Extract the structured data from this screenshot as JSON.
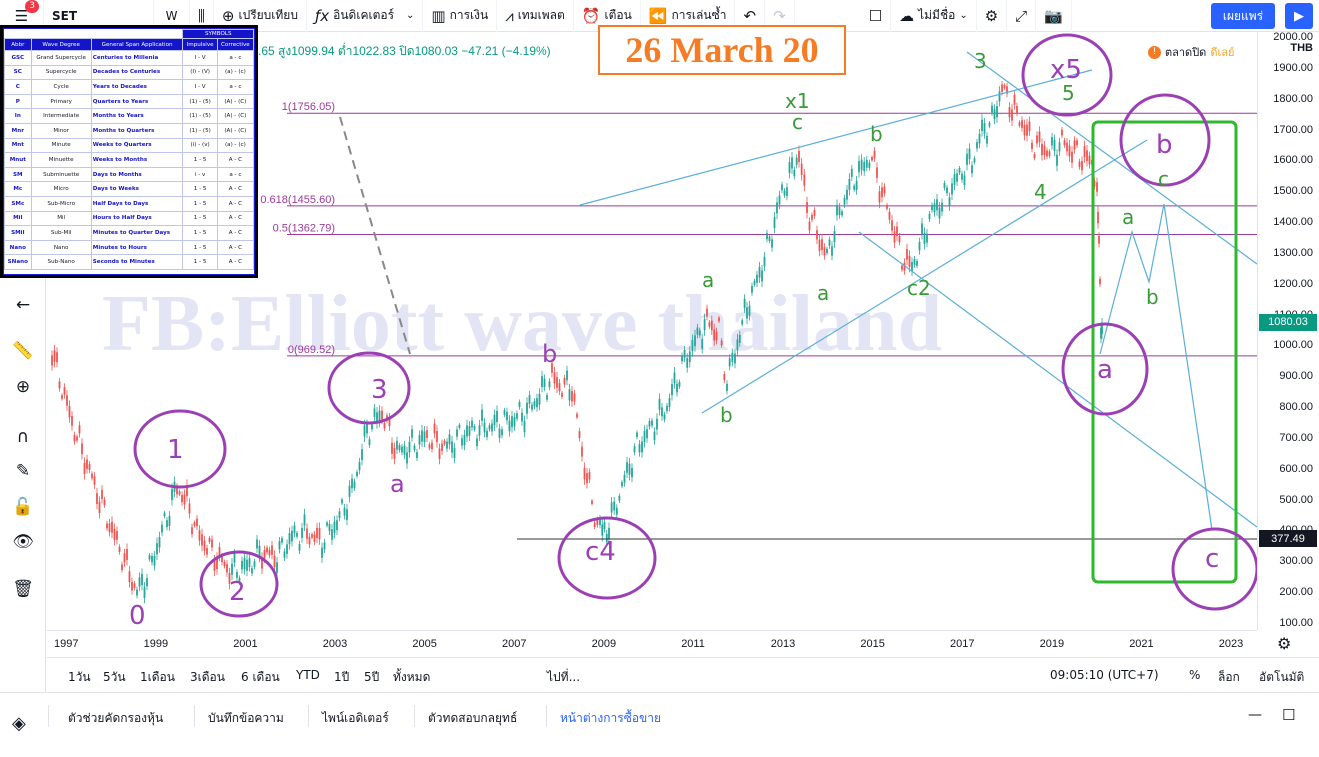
{
  "toolbar": {
    "menu_badge": "3",
    "symbol": "SET",
    "interval": "W",
    "compare": "เปรียบเทียบ",
    "indicators": "อินดิเคเตอร์",
    "financials": "การเงิน",
    "templates": "เทมเพลต",
    "alert": "เตือน",
    "replay": "การเล่นซ้ำ",
    "layout_name": "ไม่มีชื่อ",
    "publish": "เผยแพร่"
  },
  "legend_table": {
    "title": "SYMBOLS",
    "headers": [
      "Abbr",
      "Wave Degree",
      "General Span Application",
      "Impulsive",
      "Corrective"
    ],
    "rows": [
      [
        "GSC",
        "Grand Supercycle",
        "Centuries to Millenia",
        "I - V",
        "a - c"
      ],
      [
        "SC",
        "Supercycle",
        "Decades to Centuries",
        "(I) - (V)",
        "(a) - (c)"
      ],
      [
        "C",
        "Cycle",
        "Years to Decades",
        "I - V",
        "a - c"
      ],
      [
        "P",
        "Primary",
        "Quarters to Years",
        "(1) - (5)",
        "(A) - (C)"
      ],
      [
        "In",
        "Intermediate",
        "Months to Years",
        "(1) - (5)",
        "(A) - (C)"
      ],
      [
        "Mnr",
        "Minor",
        "Months to Quarters",
        "(1) - (5)",
        "(A) - (C)"
      ],
      [
        "Mnt",
        "Minute",
        "Weeks to Quarters",
        "(i) - (v)",
        "(a) - (c)"
      ],
      [
        "Mnut",
        "Minuette",
        "Weeks to Months",
        "1 - 5",
        "A - C"
      ],
      [
        "SM",
        "Subminuette",
        "Days to Months",
        "i - v",
        "a - c"
      ],
      [
        "Mc",
        "Micro",
        "Days to Weeks",
        "1 - 5",
        "A - C"
      ],
      [
        "SMc",
        "Sub-Micro",
        "Half Days to Days",
        "1 - 5",
        "A - C"
      ],
      [
        "Mil",
        "Mil",
        "Hours to Half Days",
        "1 - 5",
        "A - C"
      ],
      [
        "SMil",
        "Sub-Mil",
        "Minutes to Quarter Days",
        "1 - 5",
        "A - C"
      ],
      [
        "Nano",
        "Nano",
        "Minutes to Hours",
        "1 - 5",
        "A - C"
      ],
      [
        "SNano",
        "Sub-Nano",
        "Seconds to Minutes",
        "1 - 5",
        "A - C"
      ]
    ]
  },
  "header": {
    "ohlc": ".65 สูง1099.94 ต่ำ1022.83 ปิด1080.03 −47.21 (−4.19%)",
    "date_note": "26 March 20",
    "market_status": "ตลาดปิด",
    "delay": "ดีเลย์",
    "watermark": "FB:Elliott wave thailand"
  },
  "price_axis": {
    "currency": "THB",
    "ticks": [
      "2000.00",
      "1900.00",
      "1800.00",
      "1700.00",
      "1600.00",
      "1500.00",
      "1400.00",
      "1300.00",
      "1200.00",
      "1100.00",
      "1000.00",
      "900.00",
      "800.00",
      "700.00",
      "600.00",
      "500.00",
      "400.00",
      "300.00",
      "200.00",
      "100.00"
    ],
    "last_price": "1080.03",
    "level_tag": "377.49",
    "last_color": "#089981"
  },
  "time_axis": [
    "1997",
    "1999",
    "2001",
    "2003",
    "2005",
    "2007",
    "2009",
    "2011",
    "2013",
    "2015",
    "2017",
    "2019",
    "2021",
    "2023"
  ],
  "fib_levels": [
    {
      "label": "1(1756.05)",
      "value": 1756.05
    },
    {
      "label": "0.618(1455.60)",
      "value": 1455.6
    },
    {
      "label": "0.5(1362.79)",
      "value": 1362.79
    },
    {
      "label": "0(969.52)",
      "value": 969.52
    }
  ],
  "wave_labels": {
    "w0": "0",
    "w1": "1",
    "w2": "2",
    "w3": "3",
    "wa1": "a",
    "wb1": "b",
    "wc4": "c4",
    "x1": "x1",
    "x5": "x5",
    "g3": "3",
    "g5": "5",
    "g4": "4",
    "gc1": "c",
    "gb1": "b",
    "ga1": "a",
    "gb2": "b",
    "ga2": "a",
    "gc2": "c2",
    "pb": "b",
    "pa": "a",
    "pc": "c",
    "fa": "a",
    "fb": "b",
    "fc": "c"
  },
  "range_bar": {
    "ranges": [
      "1วัน",
      "5วัน",
      "1เดือน",
      "3เดือน",
      "6 เดือน",
      "YTD",
      "1ปี",
      "5ปี",
      "ทั้งหมด"
    ],
    "goto": "ไปที่...",
    "clock": "09:05:10 (UTC+7)",
    "percent": "%",
    "log": "ล็อก",
    "auto": "อัตโนมัติ"
  },
  "bottom_tabs": [
    "ตัวช่วยคัดกรองหุ้น",
    "บันทึกข้อความ",
    "ไพน์เอดิเตอร์",
    "ตัวทดสอบกลยุทธ์",
    "หน้าต่างการซื้อขาย"
  ],
  "colors": {
    "purple": "#9b3fb5",
    "green": "#3a9a3a",
    "blue_line": "#5aaed8",
    "fib": "#9c3a9c",
    "up": "#26a69a",
    "down": "#ef5350",
    "box": "#2eb82e"
  }
}
